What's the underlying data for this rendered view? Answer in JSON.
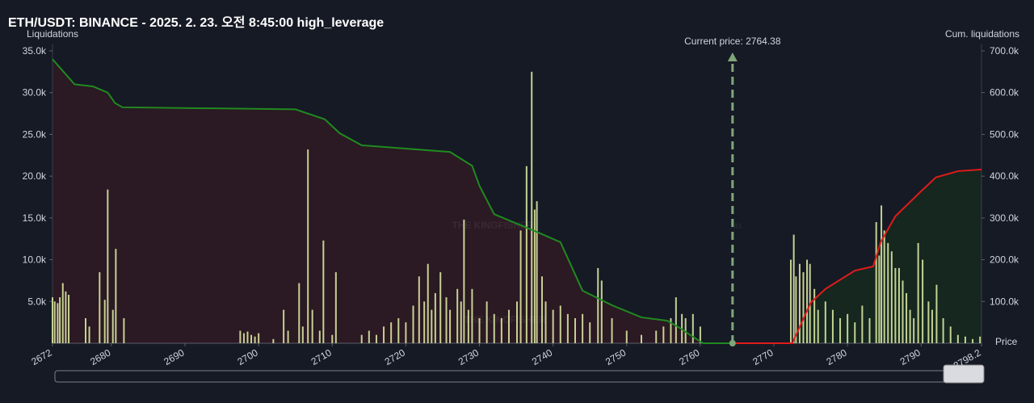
{
  "chart_data": {
    "type": "bar",
    "title": "ETH/USDT: BINANCE - 2025. 2. 23. 오전 8:45:00 high_leverage",
    "y_label": "Liquidations",
    "y2_label": "Cum. liquidations",
    "x_label": "Price",
    "watermark": [
      "THE KINGFISHER",
      ".io",
      "THE KINGFISHER"
    ],
    "xlim": [
      2672,
      2798.2
    ],
    "xticks": [
      2672,
      2680,
      2690,
      2700,
      2710,
      2720,
      2730,
      2740,
      2750,
      2760,
      2770,
      2780,
      2790,
      2798.2
    ],
    "ylim": [
      0,
      35000
    ],
    "yticks": [
      {
        "value": 5000,
        "label": "5.0k"
      },
      {
        "value": 10000,
        "label": "10.0k"
      },
      {
        "value": 15000,
        "label": "15.0k"
      },
      {
        "value": 20000,
        "label": "20.0k"
      },
      {
        "value": 25000,
        "label": "25.0k"
      },
      {
        "value": 30000,
        "label": "30.0k"
      },
      {
        "value": 35000,
        "label": "35.0k"
      }
    ],
    "y2lim": [
      0,
      700000
    ],
    "y2ticks": [
      {
        "value": 100000,
        "label": "100.0k"
      },
      {
        "value": 200000,
        "label": "200.0k"
      },
      {
        "value": 300000,
        "label": "300.0k"
      },
      {
        "value": 400000,
        "label": "400.0k"
      },
      {
        "value": 500000,
        "label": "500.0k"
      },
      {
        "value": 600000,
        "label": "600.0k"
      },
      {
        "value": 700000,
        "label": "700.0k"
      }
    ],
    "annotation": {
      "value": 2764.38,
      "label": "Current price: 2764.38",
      "color": "#7fa67a"
    },
    "series": [
      {
        "type": "bar",
        "color": "#d8e6a0",
        "x": [
          2672.0,
          2672.3,
          2672.7,
          2673.0,
          2673.4,
          2673.8,
          2674.2,
          2676.5,
          2677.0,
          2678.4,
          2679.1,
          2679.5,
          2680.2,
          2680.6,
          2681.7,
          2697.5,
          2698.0,
          2698.5,
          2699.0,
          2699.5,
          2700.0,
          2702.0,
          2703.4,
          2704.0,
          2705.5,
          2706.0,
          2706.7,
          2707.3,
          2708.3,
          2708.8,
          2710.0,
          2710.5,
          2714,
          2715,
          2716,
          2717,
          2718,
          2719,
          2720,
          2721,
          2721.8,
          2722.5,
          2723,
          2723.5,
          2724,
          2724.7,
          2725.5,
          2726,
          2727,
          2727.5,
          2727.9,
          2728.5,
          2729,
          2730,
          2731,
          2732,
          2733,
          2734,
          2735.1,
          2735.6,
          2736.4,
          2737.1,
          2737.5,
          2737.8,
          2738.5,
          2739,
          2740,
          2741,
          2742,
          2743,
          2744,
          2745,
          2746.1,
          2746.6,
          2748,
          2750,
          2752,
          2754,
          2755,
          2756,
          2756.7,
          2757.5,
          2758,
          2759,
          2760,
          2772.3,
          2772.7,
          2773,
          2773.5,
          2774,
          2774.5,
          2774.9,
          2775.5,
          2776,
          2777,
          2778,
          2779,
          2780,
          2781,
          2782,
          2783,
          2783.9,
          2784.3,
          2784.6,
          2785,
          2785.5,
          2786,
          2786.5,
          2787,
          2787.5,
          2788,
          2788.5,
          2789,
          2789.6,
          2790.2,
          2791,
          2791.5,
          2792.1,
          2793,
          2794,
          2795,
          2796,
          2797,
          2798
        ],
        "values": [
          5500,
          5000,
          4800,
          5500,
          7200,
          6200,
          5800,
          3000,
          2000,
          8500,
          5200,
          18400,
          4000,
          11300,
          3000,
          1500,
          1200,
          1400,
          1000,
          800,
          1200,
          500,
          4000,
          1500,
          7200,
          2000,
          23200,
          4000,
          1500,
          12300,
          1000,
          8500,
          1000,
          1500,
          1000,
          2000,
          2500,
          3000,
          2500,
          4500,
          8000,
          5000,
          9500,
          4000,
          6000,
          8500,
          5500,
          4000,
          6500,
          5000,
          14800,
          4000,
          6500,
          3000,
          5000,
          3500,
          3000,
          4000,
          5000,
          13500,
          21200,
          32500,
          16000,
          17000,
          8000,
          5000,
          4000,
          4500,
          3500,
          3000,
          3500,
          2500,
          9000,
          7500,
          3000,
          1500,
          1000,
          1500,
          2000,
          3000,
          5500,
          3500,
          3000,
          3500,
          2000,
          10000,
          13000,
          8000,
          9500,
          8500,
          10000,
          9500,
          6500,
          4000,
          5000,
          4000,
          3000,
          3500,
          2500,
          4500,
          3000,
          14500,
          10500,
          16500,
          13500,
          12000,
          11000,
          9000,
          9000,
          7500,
          6000,
          4000,
          3000,
          12000,
          10000,
          5000,
          4000,
          7000,
          3000,
          2000,
          1000,
          800,
          500,
          800
        ]
      },
      {
        "type": "line",
        "axis": "y2",
        "color": "#1f8a1f",
        "fill": "#2e1a24",
        "x": [
          2672,
          2674,
          2675,
          2677.5,
          2679.5,
          2680.5,
          2681.5,
          2705,
          2709,
          2711,
          2714,
          2726,
          2729,
          2730,
          2732,
          2738,
          2741,
          2744,
          2748,
          2752,
          2755.5,
          2757,
          2760,
          2760.4,
          2764.38
        ],
        "values": [
          680000,
          640000,
          620000,
          615000,
          600000,
          575000,
          565000,
          560000,
          536000,
          503000,
          474000,
          458000,
          425000,
          377000,
          309000,
          265000,
          242000,
          126000,
          91000,
          62000,
          54000,
          39000,
          4000,
          0,
          0
        ]
      },
      {
        "type": "line",
        "axis": "y2",
        "color": "#e01b1b",
        "fill": "#15291f",
        "x": [
          2764.38,
          2772.5,
          2775,
          2777,
          2781,
          2783.5,
          2784.5,
          2786.5,
          2790,
          2792,
          2795,
          2798.2
        ],
        "values": [
          0,
          0,
          97000,
          130000,
          174000,
          184000,
          242000,
          304000,
          364000,
          397000,
          412000,
          416000
        ]
      }
    ]
  }
}
